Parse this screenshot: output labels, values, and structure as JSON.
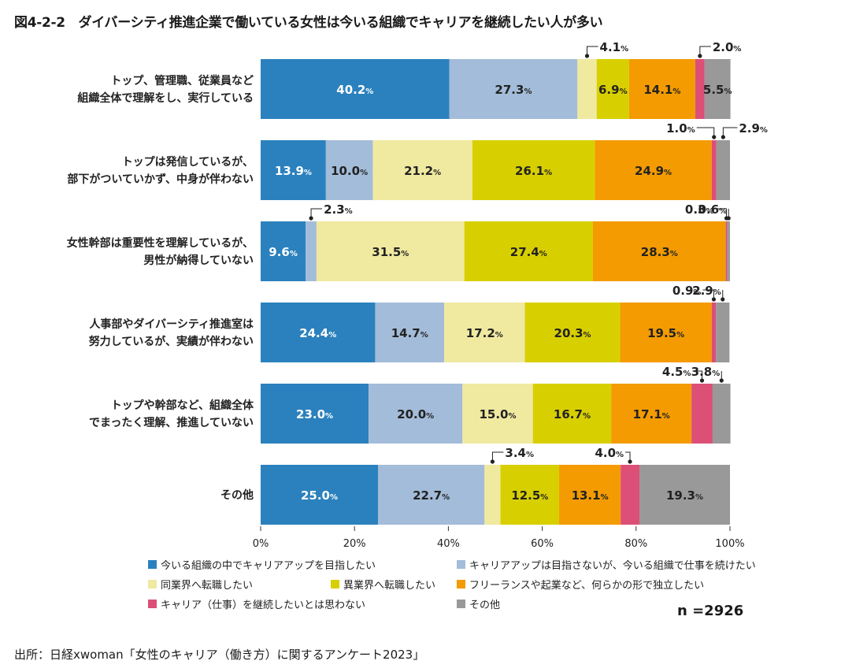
{
  "title": "図4-2-2　ダイバーシティ推進企業で働いている女性は今いる組織でキャリアを継続したい人が多い",
  "source": "出所：日経xwoman「女性のキャリア（働き方）に関するアンケート2023」",
  "n_label": "n =2926",
  "chart_data": {
    "type": "bar",
    "orientation": "horizontal",
    "stacked": true,
    "percent_suffix": "%",
    "categories": [
      [
        "トップ、管理職、従業員など",
        "組織全体で理解をし、実行している"
      ],
      [
        "トップは発信しているが、",
        "部下がついていかず、中身が伴わない"
      ],
      [
        "女性幹部は重要性を理解しているが、",
        "男性が納得していない"
      ],
      [
        "人事部やダイバーシティ推進室は",
        "努力しているが、実績が伴わない"
      ],
      [
        "トップや幹部など、組織全体",
        "でまったく理解、推進していない"
      ],
      [
        "その他"
      ]
    ],
    "series": [
      {
        "name": "今いる組織の中でキャリアアップを目指したい",
        "color": "#2b81bd",
        "label_color": "#ffffff",
        "values": [
          40.2,
          13.9,
          9.6,
          24.4,
          23.0,
          25.0
        ]
      },
      {
        "name": "キャリアアップは目指さないが、今いる組織で仕事を続けたい",
        "color": "#a3bcd9",
        "label_color": "#222222",
        "values": [
          27.3,
          10.0,
          2.3,
          14.7,
          20.0,
          22.7
        ]
      },
      {
        "name": "同業界へ転職したい",
        "color": "#f0e9a0",
        "label_color": "#222222",
        "values": [
          4.1,
          21.2,
          31.5,
          17.2,
          15.0,
          3.4
        ]
      },
      {
        "name": "異業界へ転職したい",
        "color": "#d8cf00",
        "label_color": "#222222",
        "values": [
          6.9,
          26.1,
          27.4,
          20.3,
          16.7,
          12.5
        ]
      },
      {
        "name": "フリーランスや起業など、何らかの形で独立したい",
        "color": "#f39b00",
        "label_color": "#222222",
        "values": [
          14.1,
          24.9,
          28.3,
          19.5,
          17.1,
          13.1
        ]
      },
      {
        "name": "キャリア（仕事）を継続したいとは思わない",
        "color": "#dc4f77",
        "label_color": "#222222",
        "values": [
          2.0,
          1.0,
          0.3,
          0.9,
          4.5,
          4.0
        ]
      },
      {
        "name": "その他",
        "color": "#999999",
        "label_color": "#222222",
        "values": [
          5.5,
          2.9,
          0.6,
          2.9,
          3.8,
          19.3
        ]
      }
    ],
    "xlim": [
      0,
      100
    ],
    "xticks": [
      "0%",
      "20%",
      "40%",
      "60%",
      "80%",
      "100%"
    ],
    "callouts": [
      {
        "bar": 0,
        "series": 2,
        "text": "4.1"
      },
      {
        "bar": 0,
        "series": 5,
        "text": "2.0"
      },
      {
        "bar": 1,
        "series": 5,
        "text": "1.0"
      },
      {
        "bar": 1,
        "series": 6,
        "text": "2.9"
      },
      {
        "bar": 2,
        "series": 1,
        "text": "2.3"
      },
      {
        "bar": 2,
        "series": 6,
        "text": "0.6"
      },
      {
        "bar": 2,
        "series": 5,
        "text": "0.3"
      },
      {
        "bar": 3,
        "series": 6,
        "text": "2.9"
      },
      {
        "bar": 3,
        "series": 5,
        "text": "0.9"
      },
      {
        "bar": 4,
        "series": 6,
        "text": "3.8"
      },
      {
        "bar": 4,
        "series": 5,
        "text": "4.5"
      },
      {
        "bar": 5,
        "series": 2,
        "text": "3.4"
      },
      {
        "bar": 5,
        "series": 5,
        "text": "4.0"
      }
    ],
    "inside_labels": [
      [
        true,
        true,
        false,
        true,
        true,
        false,
        true
      ],
      [
        true,
        true,
        true,
        true,
        true,
        false,
        false
      ],
      [
        true,
        false,
        true,
        true,
        true,
        false,
        false
      ],
      [
        true,
        true,
        true,
        true,
        true,
        false,
        false
      ],
      [
        true,
        true,
        true,
        true,
        true,
        false,
        false
      ],
      [
        true,
        true,
        false,
        true,
        true,
        false,
        true
      ]
    ],
    "legend_position": "bottom"
  }
}
